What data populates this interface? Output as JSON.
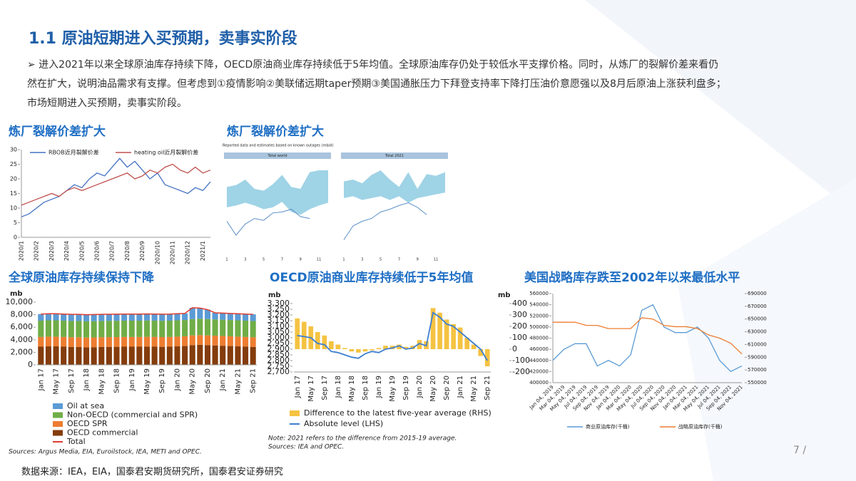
{
  "header": {
    "title": "1.1 原油短期进入买预期，卖事实阶段"
  },
  "bullet": "➢ 进入2021年以来全球原油库存持续下降，OECD原油商业库存持续低于5年均值。全球原油库存仍处于较低水平支撑价格。同时，从炼厂的裂解价差来看仍然在扩大，说明油品需求有支撑。但考虑到①疫情影响②美联储远期taper预期③美国通胀压力下拜登支持率下降打压油价意愿强以及8月后原油上涨获利盘多；市场短期进入买预期，卖事实阶段。",
  "chart_data": [
    {
      "type": "line",
      "title": "炼厂裂解价差扩大",
      "legend": "top",
      "categories": [
        "2020/1",
        null,
        "2020/2",
        null,
        "2020/3",
        null,
        "2020/4",
        null,
        "2020/5",
        null,
        "2020/6",
        null,
        "2020/7",
        null,
        "2020/8",
        null,
        "2020/9",
        null,
        "2020/10",
        null,
        "2020/11",
        null,
        "2020/12",
        null,
        "2021/1",
        null
      ],
      "ylim": [
        0,
        30
      ],
      "yticks": [
        0,
        5,
        10,
        15,
        20,
        25,
        30
      ],
      "series": [
        {
          "name": "RBOB近月裂解价差",
          "color": "#4472c4",
          "values": [
            7,
            8,
            10,
            12,
            13,
            14,
            16,
            18,
            17,
            20,
            22,
            21,
            24,
            27,
            24,
            26,
            23,
            20,
            22,
            18,
            17,
            16,
            15,
            17,
            16,
            19
          ]
        },
        {
          "name": "heating oil近月裂解价差",
          "color": "#c0504d",
          "values": [
            11,
            12,
            13,
            14,
            15,
            14,
            16,
            17,
            16,
            17,
            18,
            19,
            20,
            21,
            22,
            20,
            21,
            23,
            22,
            24,
            25,
            23,
            22,
            24,
            22,
            23
          ]
        }
      ]
    },
    {
      "type": "band",
      "title": "炼厂裂解价差扩大",
      "subtitle": "Reported data and estimates based on known outages (mb/d)",
      "x": [
        1,
        2,
        3,
        4,
        5,
        6,
        7,
        8,
        9,
        10,
        11,
        12
      ],
      "xlim": [
        1,
        12
      ],
      "xticks": [
        1,
        3,
        5,
        7,
        9,
        11
      ],
      "ylim": [
        0,
        100
      ],
      "band_color": "#9fd3e6",
      "line_color": "#5b8fc7",
      "panels": [
        {
          "title": "Total world",
          "upper": [
            72,
            74,
            80,
            70,
            68,
            75,
            85,
            72,
            70,
            88,
            90,
            90
          ],
          "lower": [
            50,
            52,
            55,
            52,
            48,
            50,
            56,
            45,
            42,
            48,
            52,
            55
          ],
          "line": [
            35,
            20,
            32,
            38,
            36,
            44,
            45,
            48,
            40,
            38,
            null,
            null
          ]
        },
        {
          "title": "Total 2021",
          "upper": [
            78,
            80,
            76,
            85,
            90,
            80,
            72,
            88,
            70,
            86,
            84,
            88
          ],
          "lower": [
            60,
            62,
            58,
            60,
            62,
            58,
            62,
            55,
            60,
            62,
            64,
            66
          ],
          "line": [
            15,
            30,
            35,
            38,
            45,
            48,
            52,
            55,
            50,
            42,
            null,
            null
          ]
        }
      ]
    },
    {
      "type": "stacked-bar",
      "title": "全球原油库存持续保持下降",
      "y_label": "mb",
      "categories": [
        "Jan 17",
        null,
        "May 17",
        null,
        "Sep 17",
        null,
        "Jan 18",
        null,
        "May 18",
        null,
        "Sep 18",
        null,
        "Jan 19",
        null,
        "May 19",
        null,
        "Sep 19",
        null,
        "Jan 20",
        null,
        "May 20",
        null,
        "Sep 20",
        null,
        "Jan 21",
        null,
        "May 21",
        null,
        "Sep 21"
      ],
      "ylim": [
        0,
        10000
      ],
      "yticks": [
        0,
        {
          "value": 2000,
          "label": "2,000"
        },
        {
          "value": 4000,
          "label": "4,000"
        },
        {
          "value": 6000,
          "label": "6,000"
        },
        {
          "value": 8000,
          "label": "8,000"
        },
        {
          "value": 10000,
          "label": "10,000"
        }
      ],
      "series": [
        {
          "name": "Oil at sea",
          "color": "#5b9bd5",
          "values": [
            1050,
            1050,
            1050,
            1050,
            1050,
            1050,
            1050,
            1050,
            1050,
            1050,
            1050,
            1050,
            1050,
            1050,
            1050,
            1050,
            1050,
            1050,
            1050,
            1050,
            1800,
            1700,
            1500,
            1050,
            1050,
            1050,
            1050,
            1050,
            1050
          ]
        },
        {
          "name": "Non-OECD (commercial and SPR)",
          "color": "#70ad47",
          "values": [
            2600,
            2600,
            2600,
            2600,
            2600,
            2600,
            2600,
            2600,
            2600,
            2600,
            2600,
            2600,
            2600,
            2600,
            2600,
            2600,
            2600,
            2600,
            2600,
            2600,
            2600,
            2600,
            2600,
            2600,
            2600,
            2600,
            2600,
            2600,
            2600
          ]
        },
        {
          "name": "OECD SPR",
          "color": "#ed7d31",
          "values": [
            1550,
            1550,
            1550,
            1550,
            1550,
            1550,
            1550,
            1550,
            1550,
            1550,
            1550,
            1550,
            1550,
            1550,
            1550,
            1550,
            1550,
            1550,
            1550,
            1550,
            1550,
            1550,
            1550,
            1550,
            1550,
            1550,
            1550,
            1550,
            1550
          ]
        },
        {
          "name": "OECD commercial",
          "color": "#843c0c",
          "values": [
            2900,
            2950,
            2950,
            2900,
            2850,
            2850,
            2800,
            2820,
            2850,
            2870,
            2880,
            2900,
            2900,
            2900,
            2920,
            2900,
            2880,
            2900,
            2950,
            3000,
            3150,
            3200,
            3150,
            3100,
            3050,
            3000,
            2950,
            2900,
            2850
          ]
        },
        {
          "name": "Total",
          "color": "#e03c31",
          "mark": "line",
          "values": [
            8100,
            8150,
            8150,
            8100,
            8050,
            8050,
            8000,
            8020,
            8050,
            8070,
            8080,
            8100,
            8100,
            8100,
            8120,
            8100,
            8080,
            8100,
            8150,
            8200,
            9100,
            9050,
            8800,
            8300,
            8250,
            8200,
            8150,
            8100,
            8050
          ]
        }
      ],
      "notes": [
        "Sources: Argus Media, EIA, Euroilstock, IEA, METI and OPEC."
      ]
    },
    {
      "type": "bar-line",
      "title": "OECD原油商业库存持续低于5年均值",
      "y_label": "mb",
      "y2_label": "mb",
      "categories": [
        "Jan 17",
        null,
        "May 17",
        null,
        "Sep 17",
        null,
        "Jan 18",
        null,
        "May 18",
        null,
        "Sep 18",
        null,
        "Jan 19",
        null,
        "May 19",
        null,
        "Sep 19",
        null,
        "Jan 20",
        null,
        "May 20",
        null,
        "Sep 20",
        null,
        "Jan 21",
        null,
        "May 21",
        null,
        "Sep 21"
      ],
      "ylim": [
        2700,
        3300
      ],
      "yticks": [
        {
          "value": 2700,
          "label": "2,700"
        },
        {
          "value": 2750,
          "label": "2,750"
        },
        {
          "value": 2800,
          "label": "2,800"
        },
        {
          "value": 2850,
          "label": "2,850"
        },
        {
          "value": 2900,
          "label": "2,900"
        },
        {
          "value": 2950,
          "label": "2,950"
        },
        {
          "value": 3000,
          "label": "3,000"
        },
        {
          "value": 3050,
          "label": "3,050"
        },
        {
          "value": 3100,
          "label": "3,100"
        },
        {
          "value": 3150,
          "label": "3,150"
        },
        {
          "value": 3200,
          "label": "3,200"
        },
        {
          "value": 3250,
          "label": "3,250"
        },
        {
          "value": 3300,
          "label": "3,300"
        }
      ],
      "y2lim": [
        -200,
        400
      ],
      "y2ticks": [
        -200,
        -100,
        0,
        100,
        200,
        300,
        400
      ],
      "series": [
        {
          "name": "Difference to the latest five-year average (RHS)",
          "color": "#f5c342",
          "axis": "y2",
          "mark": "bar",
          "values": [
            270,
            240,
            200,
            150,
            120,
            70,
            40,
            10,
            -20,
            -30,
            -20,
            -10,
            10,
            30,
            30,
            40,
            20,
            30,
            80,
            70,
            360,
            320,
            260,
            220,
            190,
            100,
            40,
            -60,
            -150
          ]
        },
        {
          "name": "Absolute level (LHS)",
          "color": "#3f7fd0",
          "mark": "line",
          "values": [
            3020,
            3010,
            3000,
            2950,
            2940,
            2880,
            2870,
            2850,
            2830,
            2820,
            2860,
            2880,
            2870,
            2900,
            2910,
            2930,
            2900,
            2910,
            2950,
            2930,
            3220,
            3180,
            3120,
            3100,
            3050,
            3000,
            2950,
            2900,
            2800
          ]
        }
      ],
      "notes": [
        "Note: 2021 refers to the difference from 2015-19 average.",
        "Sources: IEA and OPEC."
      ]
    },
    {
      "type": "line",
      "title": "美国战略库存跌至2002年以来最低水平",
      "legend": "bottom",
      "categories": [
        "Jan 04, 2019",
        "Mar 04, 2019",
        "May 04, 2019",
        "Jul 04, 2019",
        "Sep 04, 2019",
        "Nov 04, 2019",
        "Jan 04, 2020",
        "Mar 04, 2020",
        "May 04, 2020",
        "Jul 04, 2020",
        "Sep 04, 2020",
        "Nov 04, 2020",
        "Jan 04, 2021",
        "Mar 04, 2021",
        "May 04, 2021",
        "Jul 04, 2021",
        "Sep 04, 2021",
        "Nov 04, 2021"
      ],
      "ylim": [
        400000,
        560000
      ],
      "yticks": [
        400000,
        420000,
        440000,
        460000,
        480000,
        500000,
        520000,
        540000,
        560000
      ],
      "y2lim": [
        550000,
        690000
      ],
      "y2ticks": [
        550000,
        570000,
        590000,
        610000,
        630000,
        650000,
        670000,
        690000
      ],
      "series": [
        {
          "name": "商业原油库存(千桶)",
          "color": "#5b9bd5",
          "values": [
            440000,
            460000,
            470000,
            470000,
            430000,
            440000,
            430000,
            450000,
            530000,
            540000,
            500000,
            490000,
            490000,
            500000,
            480000,
            440000,
            420000,
            430000
          ]
        },
        {
          "name": "战略原油库存(千桶)",
          "color": "#ed7d31",
          "axis": "y2",
          "values": [
            645000,
            645000,
            645000,
            640000,
            640000,
            635000,
            635000,
            635000,
            652000,
            650000,
            640000,
            638000,
            638000,
            635000,
            625000,
            620000,
            612000,
            595000
          ]
        }
      ]
    }
  ],
  "footer": {
    "source": "数据来源：IEA，EIA，国泰君安期货研究所，国泰君安证券研究",
    "page": "7 /"
  }
}
